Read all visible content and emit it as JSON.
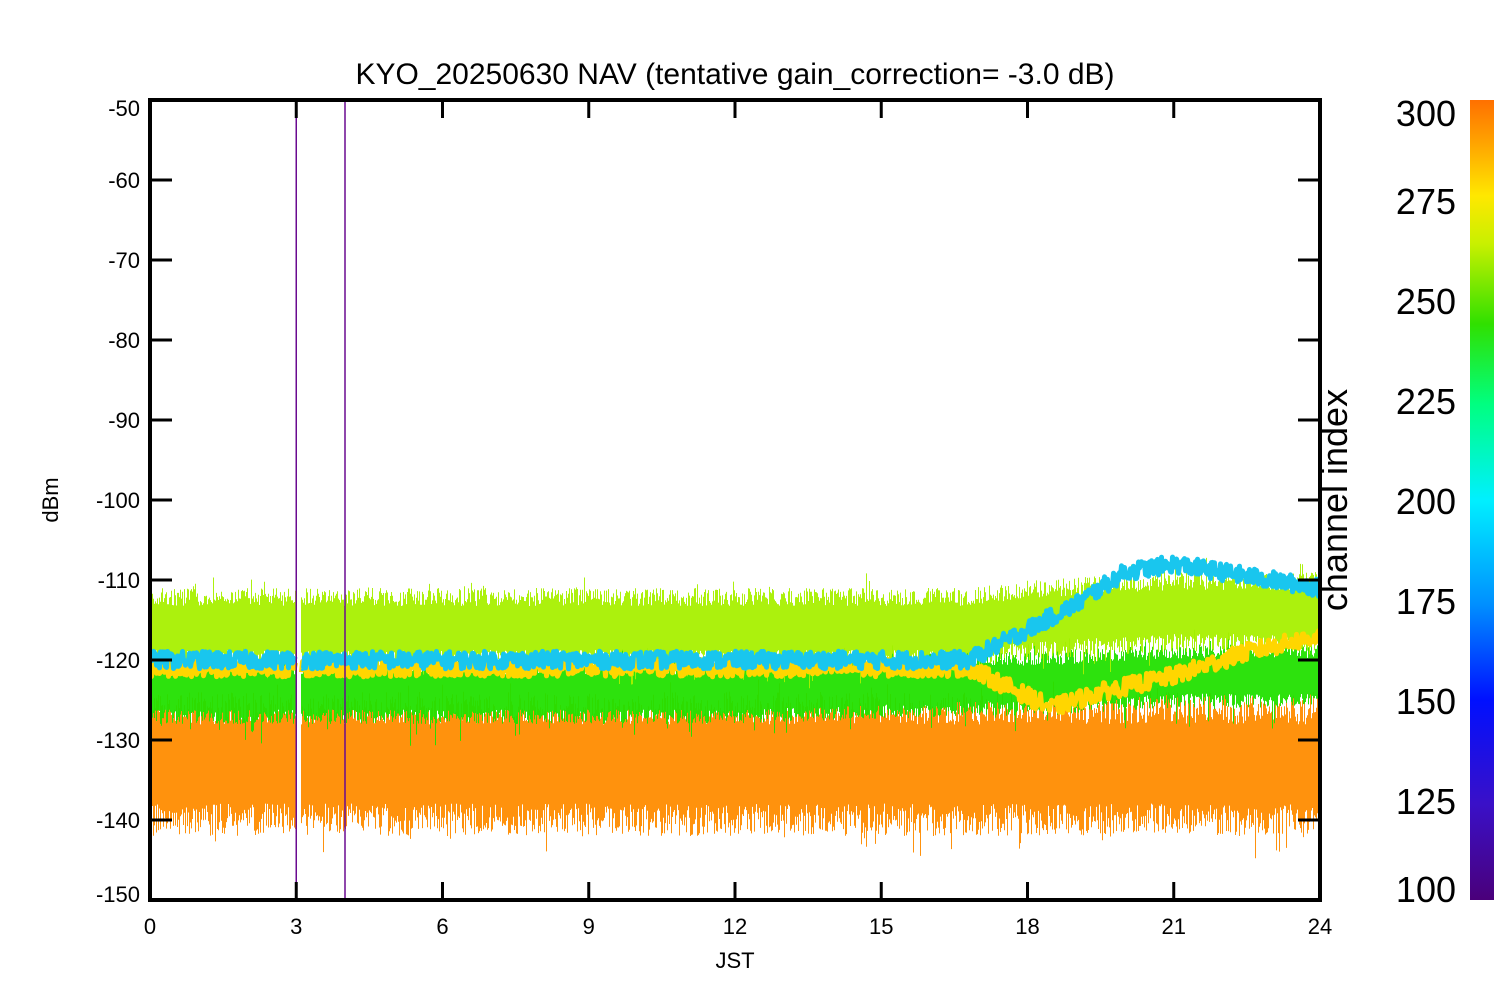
{
  "chart_data": {
    "type": "scatter",
    "title": "KYO_20250630 NAV (tentative gain_correction= -3.0 dB)",
    "xlabel": "JST",
    "ylabel": "dBm",
    "xlim": [
      0,
      24
    ],
    "ylim": [
      -150,
      -50
    ],
    "xticks": [
      0,
      3,
      6,
      9,
      12,
      15,
      18,
      21,
      24
    ],
    "yticks": [
      -50,
      -60,
      -70,
      -80,
      -90,
      -100,
      -110,
      -120,
      -130,
      -140,
      -150
    ],
    "grid": false,
    "colorbar": {
      "label": "channel index",
      "range": [
        100,
        300
      ],
      "ticks": [
        300,
        275,
        250,
        225,
        200,
        175,
        150,
        125,
        100
      ],
      "colormap": "rainbow (purple-blue-cyan-green-yellow-orange)"
    },
    "data_gap": {
      "x": [
        3.0,
        3.1
      ]
    },
    "series": [
      {
        "channel": 300,
        "color": "#ff8c00",
        "description": "dense noise floor band",
        "x": [
          0,
          3,
          6,
          9,
          12,
          15,
          18,
          21,
          24
        ],
        "y_center": [
          -133,
          -133,
          -133,
          -133,
          -133,
          -133,
          -133,
          -133,
          -133
        ],
        "spread": [
          -142,
          -124
        ]
      },
      {
        "channel": 250,
        "color": "#a8f000",
        "description": "upper green-yellow band",
        "x": [
          0,
          6,
          12,
          16.8,
          18,
          21,
          24
        ],
        "y_center": [
          -116,
          -116,
          -116,
          -116,
          -115,
          -114,
          -114
        ],
        "spread": [
          -121,
          -111
        ]
      },
      {
        "channel": 170,
        "color": "#19c6ee",
        "description": "cyan trace",
        "x": [
          0,
          6,
          12,
          16.8,
          19,
          20,
          21,
          22,
          23,
          24
        ],
        "y": [
          -120,
          -120,
          -120,
          -120,
          -113,
          -109,
          -108,
          -109,
          -110,
          -111
        ]
      },
      {
        "channel": 270,
        "color": "#ffd600",
        "description": "yellow trace",
        "x": [
          0,
          6,
          12,
          16.8,
          18.5,
          19.5,
          21,
          22.5,
          24
        ],
        "y": [
          -121,
          -121,
          -121,
          -121,
          -126,
          -124,
          -122,
          -119,
          -117
        ]
      },
      {
        "channel": 230,
        "color": "#22e000",
        "description": "green band",
        "x": [
          0,
          6,
          12,
          16.8,
          18,
          21,
          24
        ],
        "y_center": [
          -124,
          -124,
          -124,
          -123,
          -123,
          -122,
          -122
        ],
        "spread": [
          -128,
          -120
        ]
      },
      {
        "channel": 105,
        "color": "#6a0a90",
        "description": "purple spikes",
        "x": [
          3,
          4
        ],
        "y": [
          -50,
          -50
        ]
      }
    ]
  }
}
